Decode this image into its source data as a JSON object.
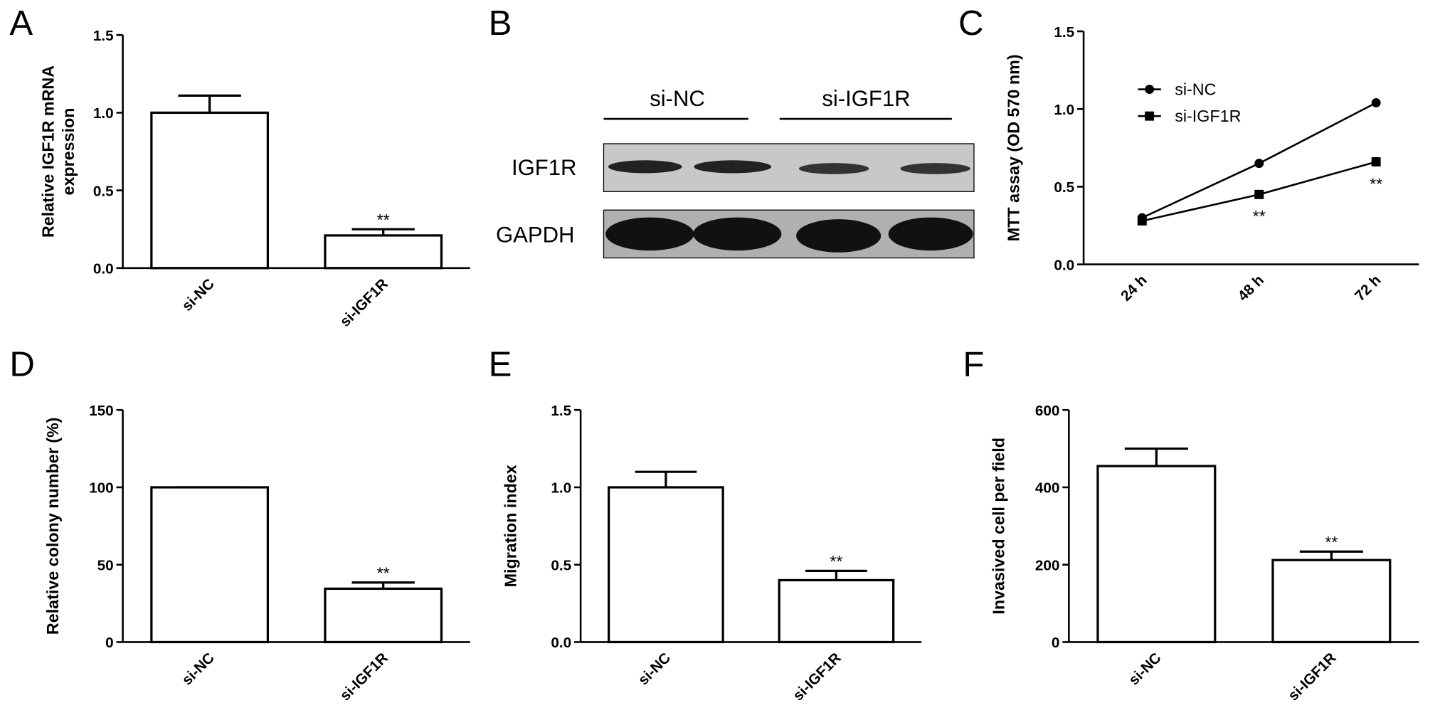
{
  "chart_data": [
    {
      "type": "bar",
      "panel": "A",
      "ylabel": [
        "Relative IGF1R mRNA",
        "expression"
      ],
      "categories": [
        "si-NC",
        "si-IGF1R"
      ],
      "values": [
        1.0,
        0.21
      ],
      "errors": [
        0.11,
        0.04
      ],
      "ylim": [
        0,
        1.5
      ],
      "yticks": [
        {
          "value": 0,
          "label": "0.0"
        },
        0.5,
        {
          "value": 1,
          "label": "1.0"
        },
        1.5
      ],
      "color": "#ffffff",
      "annotations": [
        {
          "text": "**",
          "x": "si-IGF1R"
        }
      ]
    },
    {
      "type": "line",
      "panel": "C",
      "ylabel": "MTT assay (OD 570 nm)",
      "categories": [
        "24 h",
        "48 h",
        "72 h"
      ],
      "series": [
        {
          "name": "si-NC",
          "marker": "circle",
          "color": "#000000",
          "values": [
            0.3,
            0.65,
            1.04
          ]
        },
        {
          "name": "si-IGF1R",
          "marker": "square",
          "color": "#000000",
          "values": [
            0.28,
            0.45,
            0.66
          ]
        }
      ],
      "ylim": [
        0,
        1.5
      ],
      "yticks": [
        {
          "value": 0,
          "label": "0.0"
        },
        0.5,
        {
          "value": 1,
          "label": "1.0"
        },
        1.5
      ],
      "legend": "upper left",
      "annotations": [
        {
          "text": "**",
          "x": "48 h",
          "series": "si-IGF1R"
        },
        {
          "text": "**",
          "x": "72 h",
          "series": "si-IGF1R"
        }
      ]
    },
    {
      "type": "bar",
      "panel": "D",
      "ylabel": "Relative colony number (%)",
      "categories": [
        "si-NC",
        "si-IGF1R"
      ],
      "values": [
        100,
        34.5
      ],
      "errors": [
        0,
        4
      ],
      "ylim": [
        0,
        150
      ],
      "yticks": [
        0,
        50,
        100,
        150
      ],
      "color": "#ffffff",
      "annotations": [
        {
          "text": "**",
          "x": "si-IGF1R"
        }
      ]
    },
    {
      "type": "bar",
      "panel": "E",
      "ylabel": "Migration index",
      "categories": [
        "si-NC",
        "si-IGF1R"
      ],
      "values": [
        1.0,
        0.4
      ],
      "errors": [
        0.1,
        0.06
      ],
      "ylim": [
        0,
        1.5
      ],
      "yticks": [
        {
          "value": 0,
          "label": "0.0"
        },
        0.5,
        {
          "value": 1,
          "label": "1.0"
        },
        1.5
      ],
      "color": "#ffffff",
      "annotations": [
        {
          "text": "**",
          "x": "si-IGF1R"
        }
      ]
    },
    {
      "type": "bar",
      "panel": "F",
      "ylabel": "Invasived cell per field",
      "categories": [
        "si-NC",
        "si-IGF1R"
      ],
      "values": [
        455,
        212
      ],
      "errors": [
        45,
        22
      ],
      "ylim": [
        0,
        600
      ],
      "yticks": [
        0,
        200,
        400,
        600
      ],
      "color": "#ffffff",
      "annotations": [
        {
          "text": "**",
          "x": "si-IGF1R"
        }
      ]
    }
  ],
  "blot": {
    "panel": "B",
    "groups": [
      "si-NC",
      "si-IGF1R"
    ],
    "rows": [
      "IGF1R",
      "GAPDH"
    ]
  }
}
